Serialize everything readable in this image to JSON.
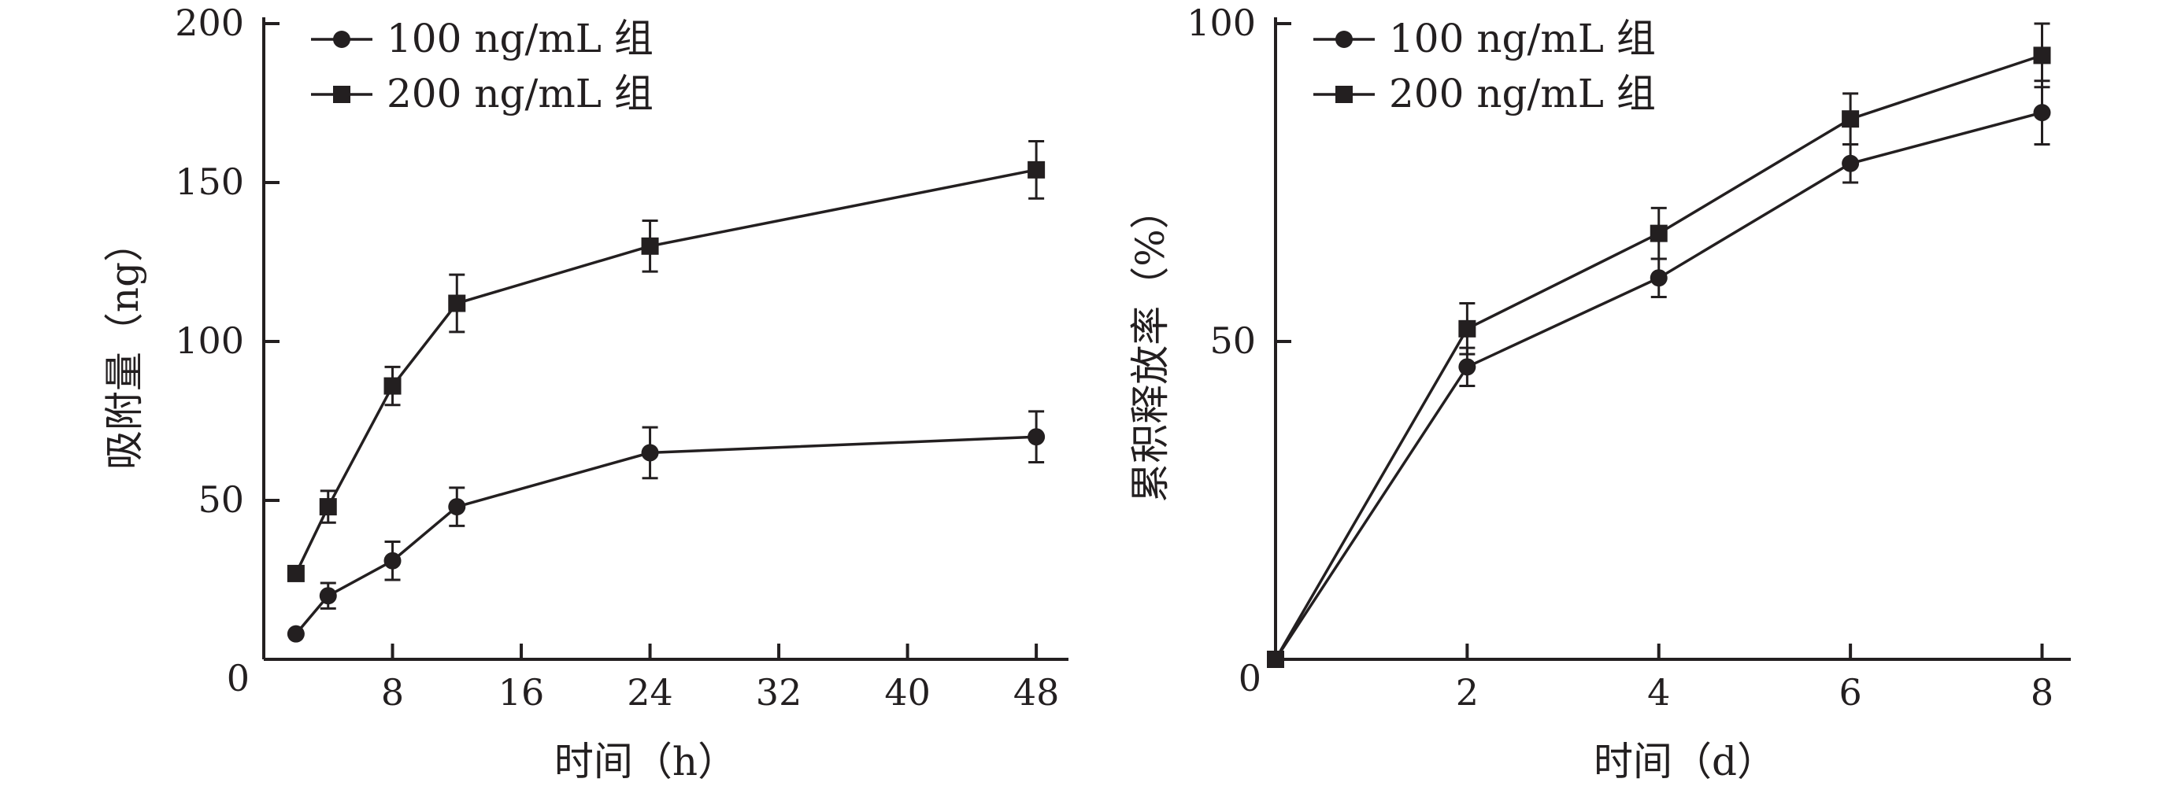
{
  "chart_data": [
    {
      "type": "line",
      "xlabel": "时间（h）",
      "ylabel": "吸附量（ng）",
      "xlim": [
        0,
        50
      ],
      "ylim": [
        0,
        200
      ],
      "xticks": [
        8,
        16,
        24,
        32,
        40,
        48
      ],
      "yticks": [
        50,
        100,
        150,
        200
      ],
      "origin_label": "0",
      "legend_position": "top-left",
      "series": [
        {
          "name": "100 ng/mL 组",
          "marker": "circle",
          "x": [
            2,
            4,
            8,
            12,
            24,
            48
          ],
          "y": [
            8,
            20,
            31,
            48,
            65,
            70
          ],
          "err": [
            0,
            4,
            6,
            6,
            8,
            8
          ]
        },
        {
          "name": "200 ng/mL 组",
          "marker": "square",
          "x": [
            2,
            4,
            8,
            12,
            24,
            48
          ],
          "y": [
            27,
            48,
            86,
            112,
            130,
            154
          ],
          "err": [
            0,
            5,
            6,
            9,
            8,
            9
          ]
        }
      ]
    },
    {
      "type": "line",
      "xlabel": "时间（d）",
      "ylabel": "累积释放率（%）",
      "xlim": [
        0,
        8.3
      ],
      "ylim": [
        0,
        100
      ],
      "xticks": [
        2,
        4,
        6,
        8
      ],
      "yticks": [
        50,
        100
      ],
      "origin_label": "0",
      "legend_position": "top-left",
      "series": [
        {
          "name": "100 ng/mL 组",
          "marker": "circle",
          "x": [
            0,
            2,
            4,
            6,
            8
          ],
          "y": [
            0,
            46,
            60,
            78,
            86
          ],
          "err": [
            0,
            3,
            3,
            3,
            5
          ]
        },
        {
          "name": "200 ng/mL 组",
          "marker": "square",
          "x": [
            0,
            2,
            4,
            6,
            8
          ],
          "y": [
            0,
            52,
            67,
            85,
            95
          ],
          "err": [
            0,
            4,
            4,
            4,
            5
          ]
        }
      ]
    }
  ]
}
